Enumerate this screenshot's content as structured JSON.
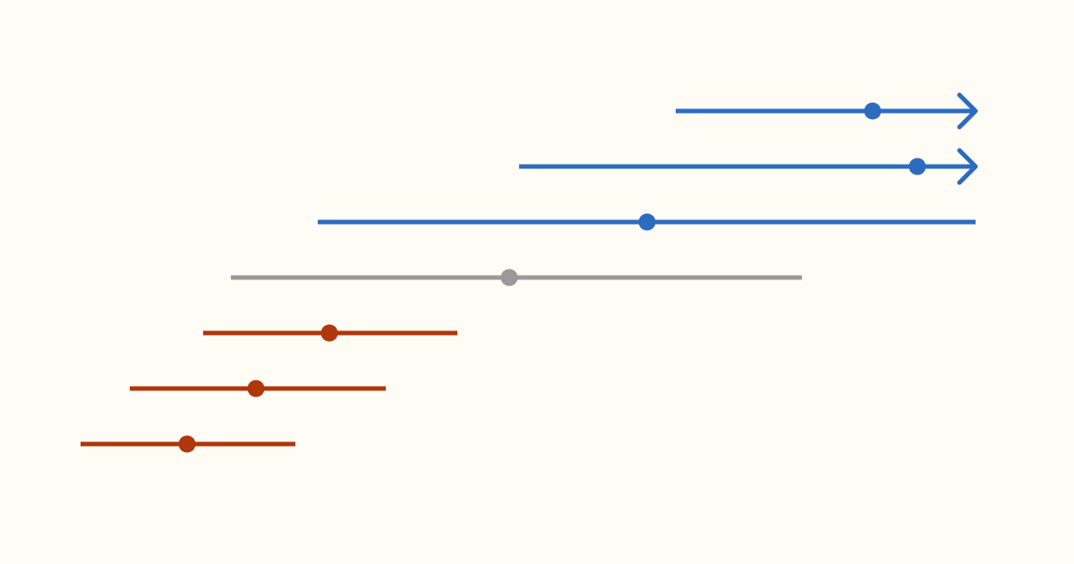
{
  "chart_data": {
    "type": "interval",
    "xlim": [
      0,
      1000
    ],
    "rows": [
      {
        "low": 665,
        "estimate": 885,
        "high": 1000,
        "color": "#2b6cbf",
        "arrow": true
      },
      {
        "low": 490,
        "estimate": 935,
        "high": 1000,
        "color": "#2b6cbf",
        "arrow": true
      },
      {
        "low": 265,
        "estimate": 633,
        "high": 1000,
        "color": "#2b6cbf",
        "arrow": false
      },
      {
        "low": 168,
        "estimate": 479,
        "high": 806,
        "color": "#999999",
        "arrow": false
      },
      {
        "low": 137,
        "estimate": 278,
        "high": 421,
        "color": "#b0360c",
        "arrow": false
      },
      {
        "low": 55,
        "estimate": 196,
        "high": 341,
        "color": "#b0360c",
        "arrow": false
      },
      {
        "low": 0,
        "estimate": 119,
        "high": 240,
        "color": "#b0360c",
        "arrow": false
      }
    ]
  }
}
